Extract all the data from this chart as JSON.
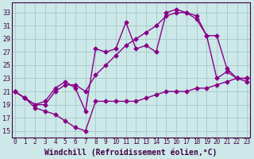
{
  "background_color": "#cce8e8",
  "grid_color": "#aacccc",
  "line_color": "#880088",
  "marker": "D",
  "markersize": 2.5,
  "linewidth": 1.0,
  "xlabel": "Windchill (Refroidissement éolien,°C)",
  "xlabel_fontsize": 7,
  "ylabel_ticks": [
    15,
    17,
    19,
    21,
    23,
    25,
    27,
    29,
    31,
    33
  ],
  "xlabel_ticks": [
    0,
    1,
    2,
    3,
    4,
    5,
    6,
    7,
    8,
    9,
    10,
    11,
    12,
    13,
    14,
    15,
    16,
    17,
    18,
    19,
    20,
    21,
    22,
    23
  ],
  "xlim": [
    -0.3,
    23.3
  ],
  "ylim": [
    14.0,
    34.5
  ],
  "line1_x": [
    0,
    1,
    2,
    3,
    4,
    5,
    6,
    7,
    8,
    9,
    10,
    11,
    12,
    13,
    14,
    15,
    16,
    17,
    18,
    19,
    20,
    21,
    22,
    23
  ],
  "line1_y": [
    21.0,
    20.0,
    18.5,
    18.0,
    17.5,
    16.5,
    15.5,
    15.0,
    19.5,
    19.5,
    19.5,
    19.5,
    19.5,
    20.0,
    20.5,
    21.0,
    21.0,
    21.0,
    21.5,
    21.5,
    22.0,
    22.5,
    23.0,
    23.0
  ],
  "line2_x": [
    0,
    1,
    2,
    3,
    4,
    5,
    6,
    7,
    8,
    9,
    10,
    11,
    12,
    13,
    14,
    15,
    16,
    17,
    18,
    19,
    20,
    21,
    22,
    23
  ],
  "line2_y": [
    21.0,
    20.0,
    19.0,
    19.0,
    21.0,
    22.0,
    22.0,
    21.0,
    23.5,
    25.0,
    26.5,
    28.0,
    29.0,
    30.0,
    31.0,
    32.5,
    33.0,
    33.0,
    32.0,
    29.5,
    29.5,
    24.5,
    23.0,
    23.0
  ],
  "line3_x": [
    0,
    1,
    2,
    3,
    4,
    5,
    6,
    7,
    8,
    9,
    10,
    11,
    12,
    13,
    14,
    15,
    16,
    17,
    18,
    19,
    20,
    21,
    22,
    23
  ],
  "line3_y": [
    21.0,
    20.0,
    19.0,
    19.5,
    21.5,
    22.5,
    21.5,
    18.0,
    27.5,
    27.0,
    27.5,
    31.5,
    27.5,
    28.0,
    27.0,
    33.0,
    33.5,
    33.0,
    32.5,
    29.5,
    23.0,
    24.0,
    23.0,
    22.5
  ]
}
